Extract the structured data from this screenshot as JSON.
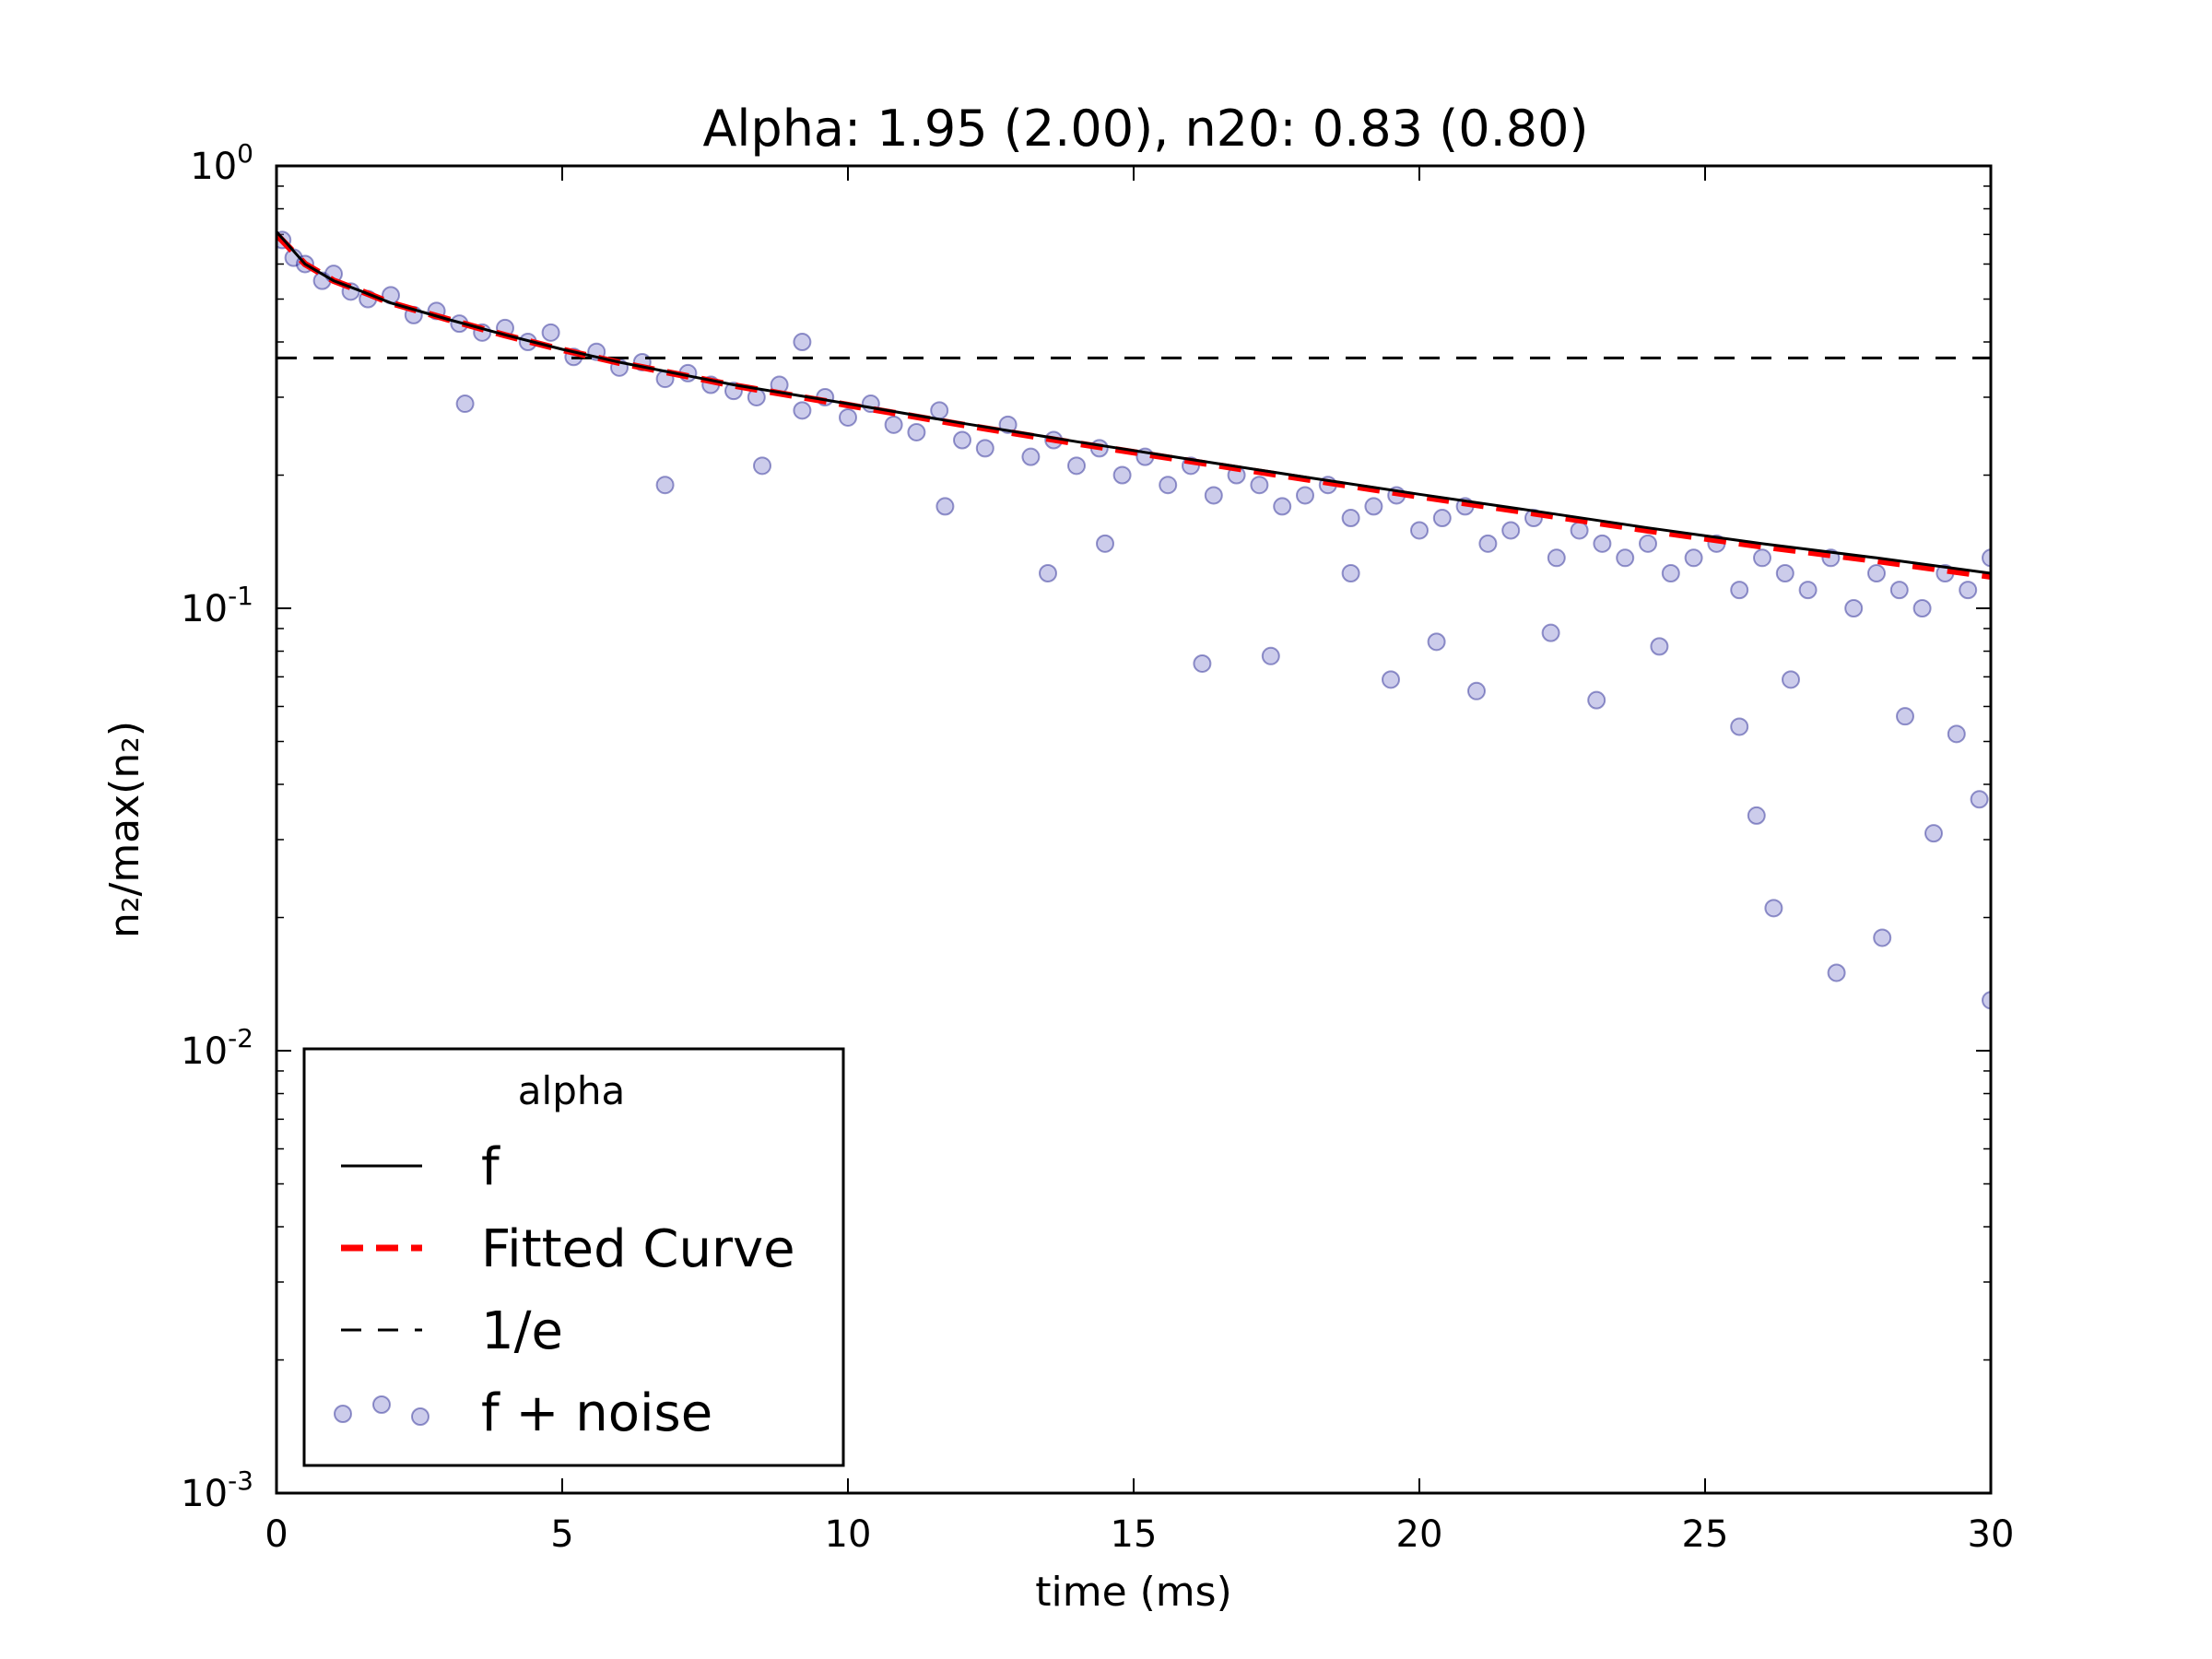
{
  "chart_data": {
    "type": "scatter",
    "title": "Alpha: 1.95 (2.00), n20: 0.83 (0.80)",
    "xlabel": "time (ms)",
    "ylabel": "n₂/max(n₂)",
    "x_range": [
      0,
      30
    ],
    "y_range": [
      0.001,
      1
    ],
    "y_scale": "log",
    "grid": false,
    "x_ticks": [
      "0",
      "5",
      "10",
      "15",
      "20",
      "25",
      "30"
    ],
    "y_ticks": [
      {
        "base": "10",
        "exp": "0"
      },
      {
        "base": "10",
        "exp": "-1"
      },
      {
        "base": "10",
        "exp": "-2"
      },
      {
        "base": "10",
        "exp": "-3"
      }
    ],
    "legend": {
      "title": "alpha",
      "placement": "lower-left",
      "entries": [
        "f",
        "Fitted Curve",
        "1/e",
        "f + noise"
      ]
    },
    "colors": {
      "f": "#000000",
      "fitted": "#ff0000",
      "one_over_e": "#000000",
      "noise_fill": "#7f7fcc",
      "noise_edge": "#00007f"
    },
    "series": [
      {
        "name": "f",
        "style": "solid",
        "x": [
          0,
          0.5,
          1,
          1.5,
          2,
          3,
          4,
          5,
          6,
          8,
          10,
          12,
          14,
          16,
          18,
          20,
          22,
          24,
          26,
          28,
          30
        ],
        "y": [
          0.71,
          0.6,
          0.55,
          0.52,
          0.49,
          0.45,
          0.415,
          0.385,
          0.36,
          0.32,
          0.29,
          0.262,
          0.238,
          0.217,
          0.198,
          0.181,
          0.166,
          0.152,
          0.14,
          0.13,
          0.12
        ]
      },
      {
        "name": "Fitted Curve",
        "style": "dashed",
        "x": [
          0,
          0.5,
          1,
          1.5,
          2,
          3,
          4,
          5,
          6,
          8,
          10,
          12,
          14,
          16,
          18,
          20,
          22,
          24,
          26,
          28,
          30
        ],
        "y": [
          0.7,
          0.6,
          0.55,
          0.52,
          0.49,
          0.45,
          0.414,
          0.384,
          0.359,
          0.319,
          0.288,
          0.26,
          0.236,
          0.215,
          0.196,
          0.179,
          0.164,
          0.15,
          0.138,
          0.128,
          0.118
        ]
      },
      {
        "name": "1/e",
        "style": "dashed",
        "x": [
          0,
          30
        ],
        "y": [
          0.368,
          0.368
        ]
      },
      {
        "name": "f + noise",
        "style": "markers",
        "x": [
          0.1,
          0.3,
          0.5,
          0.8,
          1.0,
          1.3,
          1.6,
          2.0,
          2.4,
          2.8,
          3.2,
          3.6,
          4.0,
          4.4,
          4.8,
          5.2,
          5.6,
          6.0,
          6.4,
          6.8,
          7.2,
          7.6,
          8.0,
          8.4,
          8.8,
          9.2,
          9.6,
          10.0,
          10.4,
          10.8,
          11.2,
          11.6,
          12.0,
          12.4,
          12.8,
          13.2,
          13.6,
          14.0,
          14.4,
          14.8,
          15.2,
          15.6,
          16.0,
          16.4,
          16.8,
          17.2,
          17.6,
          18.0,
          18.4,
          18.8,
          19.2,
          19.6,
          20.0,
          20.4,
          20.8,
          21.2,
          21.6,
          22.0,
          22.4,
          22.8,
          23.2,
          23.6,
          24.0,
          24.4,
          24.8,
          25.2,
          25.6,
          26.0,
          26.4,
          26.8,
          27.2,
          27.6,
          28.0,
          28.4,
          28.8,
          29.2,
          29.6,
          30.0,
          6.8,
          8.5,
          11.7,
          13.5,
          16.2,
          17.4,
          19.5,
          20.3,
          22.3,
          23.1,
          25.6,
          25.9,
          26.2,
          27.3,
          28.1,
          29.0,
          29.4,
          30.0,
          3.3,
          9.2,
          14.5,
          18.8,
          21.0,
          24.2,
          26.5,
          28.5,
          29.8
        ],
        "y": [
          0.68,
          0.62,
          0.6,
          0.55,
          0.57,
          0.52,
          0.5,
          0.51,
          0.46,
          0.47,
          0.44,
          0.42,
          0.43,
          0.4,
          0.42,
          0.37,
          0.38,
          0.35,
          0.36,
          0.33,
          0.34,
          0.32,
          0.31,
          0.3,
          0.32,
          0.28,
          0.3,
          0.27,
          0.29,
          0.26,
          0.25,
          0.28,
          0.24,
          0.23,
          0.26,
          0.22,
          0.24,
          0.21,
          0.23,
          0.2,
          0.22,
          0.19,
          0.21,
          0.18,
          0.2,
          0.19,
          0.17,
          0.18,
          0.19,
          0.16,
          0.17,
          0.18,
          0.15,
          0.16,
          0.17,
          0.14,
          0.15,
          0.16,
          0.13,
          0.15,
          0.14,
          0.13,
          0.14,
          0.12,
          0.13,
          0.14,
          0.11,
          0.13,
          0.12,
          0.11,
          0.13,
          0.1,
          0.12,
          0.11,
          0.1,
          0.12,
          0.11,
          0.13,
          0.19,
          0.21,
          0.17,
          0.12,
          0.075,
          0.078,
          0.069,
          0.084,
          0.088,
          0.062,
          0.054,
          0.034,
          0.021,
          0.015,
          0.018,
          0.031,
          0.052,
          0.013,
          0.29,
          0.4,
          0.14,
          0.12,
          0.065,
          0.082,
          0.069,
          0.057,
          0.037
        ]
      }
    ]
  }
}
